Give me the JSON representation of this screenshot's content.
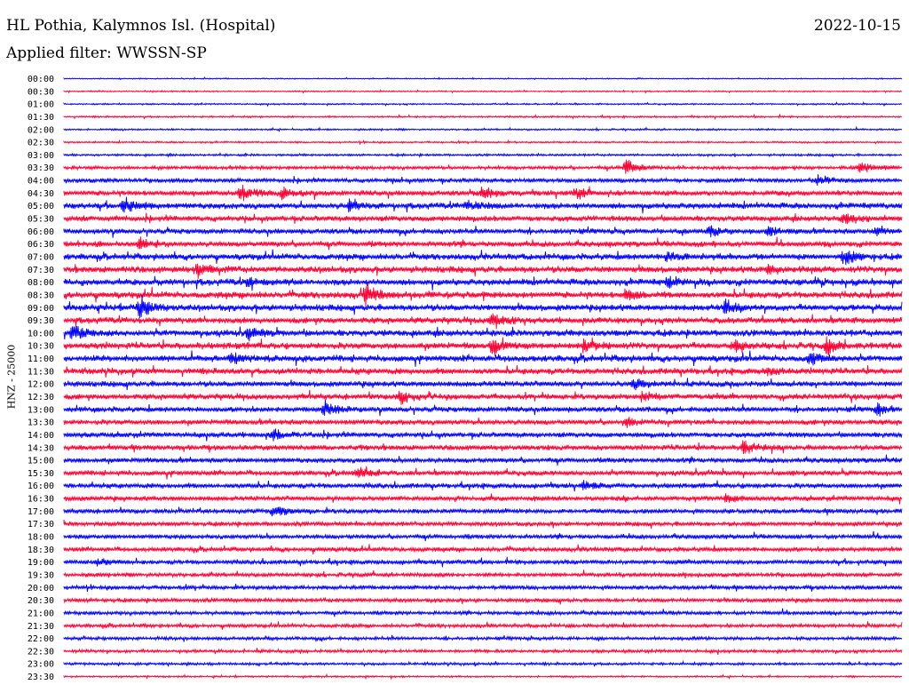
{
  "header": {
    "station": "HL Pothia, Kalymnos Isl. (Hospital)",
    "date": "2022-10-15",
    "filter": "Applied filter: WWSSN-SP"
  },
  "chart_data": {
    "type": "line",
    "title": "HL Pothia, Kalymnos Isl. (Hospital)",
    "date": "2022-10-15",
    "subtitle": "Applied filter: WWSSN-SP",
    "ylabel": "HNZ - 25000",
    "xlabel": "",
    "trace_colors": [
      "#0000ff",
      "#ff0033"
    ],
    "row_labels": [
      "00:00",
      "00:30",
      "01:00",
      "01:30",
      "02:00",
      "02:30",
      "03:00",
      "03:30",
      "04:00",
      "04:30",
      "05:00",
      "05:30",
      "06:00",
      "06:30",
      "07:00",
      "07:30",
      "08:00",
      "08:30",
      "09:00",
      "09:30",
      "10:00",
      "10:30",
      "11:00",
      "11:30",
      "12:00",
      "12:30",
      "13:00",
      "13:30",
      "14:00",
      "14:30",
      "15:00",
      "15:30",
      "16:00",
      "16:30",
      "17:00",
      "17:30",
      "18:00",
      "18:30",
      "19:00",
      "19:30",
      "20:00",
      "20:30",
      "21:00",
      "21:30",
      "22:00",
      "22:30",
      "23:00",
      "23:30"
    ],
    "noise_level": [
      0.5,
      0.6,
      0.7,
      0.8,
      0.8,
      0.8,
      1.0,
      1.6,
      2.0,
      2.4,
      2.8,
      2.6,
      2.4,
      2.6,
      2.8,
      3.0,
      3.0,
      3.0,
      3.0,
      2.8,
      3.0,
      3.0,
      3.0,
      2.8,
      2.6,
      2.6,
      2.4,
      2.4,
      2.4,
      2.4,
      2.3,
      2.3,
      2.3,
      2.2,
      2.1,
      2.0,
      2.0,
      2.0,
      2.0,
      1.9,
      1.9,
      1.8,
      1.7,
      1.6,
      1.5,
      1.4,
      1.2,
      0.8
    ],
    "events": [
      {
        "row": 7,
        "t": 0.67,
        "amp": 12
      },
      {
        "row": 7,
        "t": 0.95,
        "amp": 8
      },
      {
        "row": 8,
        "t": 0.9,
        "amp": 6
      },
      {
        "row": 9,
        "t": 0.21,
        "amp": 11
      },
      {
        "row": 9,
        "t": 0.26,
        "amp": 8
      },
      {
        "row": 9,
        "t": 0.5,
        "amp": 9
      },
      {
        "row": 9,
        "t": 0.61,
        "amp": 6
      },
      {
        "row": 10,
        "t": 0.07,
        "amp": 10
      },
      {
        "row": 10,
        "t": 0.34,
        "amp": 8
      },
      {
        "row": 10,
        "t": 0.48,
        "amp": 6
      },
      {
        "row": 11,
        "t": 0.93,
        "amp": 8
      },
      {
        "row": 12,
        "t": 0.77,
        "amp": 7
      },
      {
        "row": 12,
        "t": 0.84,
        "amp": 6
      },
      {
        "row": 12,
        "t": 0.97,
        "amp": 6
      },
      {
        "row": 13,
        "t": 0.09,
        "amp": 8
      },
      {
        "row": 14,
        "t": 0.72,
        "amp": 6
      },
      {
        "row": 14,
        "t": 0.93,
        "amp": 10
      },
      {
        "row": 15,
        "t": 0.16,
        "amp": 10
      },
      {
        "row": 15,
        "t": 0.84,
        "amp": 6
      },
      {
        "row": 16,
        "t": 0.22,
        "amp": 6
      },
      {
        "row": 16,
        "t": 0.72,
        "amp": 7
      },
      {
        "row": 17,
        "t": 0.36,
        "amp": 14
      },
      {
        "row": 17,
        "t": 0.67,
        "amp": 6
      },
      {
        "row": 18,
        "t": 0.09,
        "amp": 15
      },
      {
        "row": 18,
        "t": 0.79,
        "amp": 10
      },
      {
        "row": 19,
        "t": 0.51,
        "amp": 11
      },
      {
        "row": 20,
        "t": 0.01,
        "amp": 11
      },
      {
        "row": 20,
        "t": 0.22,
        "amp": 8
      },
      {
        "row": 21,
        "t": 0.51,
        "amp": 10
      },
      {
        "row": 21,
        "t": 0.62,
        "amp": 7
      },
      {
        "row": 21,
        "t": 0.8,
        "amp": 8
      },
      {
        "row": 21,
        "t": 0.91,
        "amp": 11
      },
      {
        "row": 22,
        "t": 0.2,
        "amp": 7
      },
      {
        "row": 22,
        "t": 0.89,
        "amp": 8
      },
      {
        "row": 23,
        "t": 0.84,
        "amp": 5
      },
      {
        "row": 24,
        "t": 0.68,
        "amp": 7
      },
      {
        "row": 25,
        "t": 0.4,
        "amp": 9
      },
      {
        "row": 25,
        "t": 0.69,
        "amp": 6
      },
      {
        "row": 26,
        "t": 0.31,
        "amp": 10
      },
      {
        "row": 26,
        "t": 0.97,
        "amp": 8
      },
      {
        "row": 27,
        "t": 0.67,
        "amp": 5
      },
      {
        "row": 28,
        "t": 0.25,
        "amp": 6
      },
      {
        "row": 29,
        "t": 0.81,
        "amp": 9
      },
      {
        "row": 31,
        "t": 0.35,
        "amp": 6
      },
      {
        "row": 32,
        "t": 0.62,
        "amp": 6
      },
      {
        "row": 33,
        "t": 0.79,
        "amp": 6
      },
      {
        "row": 34,
        "t": 0.25,
        "amp": 8
      },
      {
        "row": 38,
        "t": 0.04,
        "amp": 5
      }
    ]
  }
}
